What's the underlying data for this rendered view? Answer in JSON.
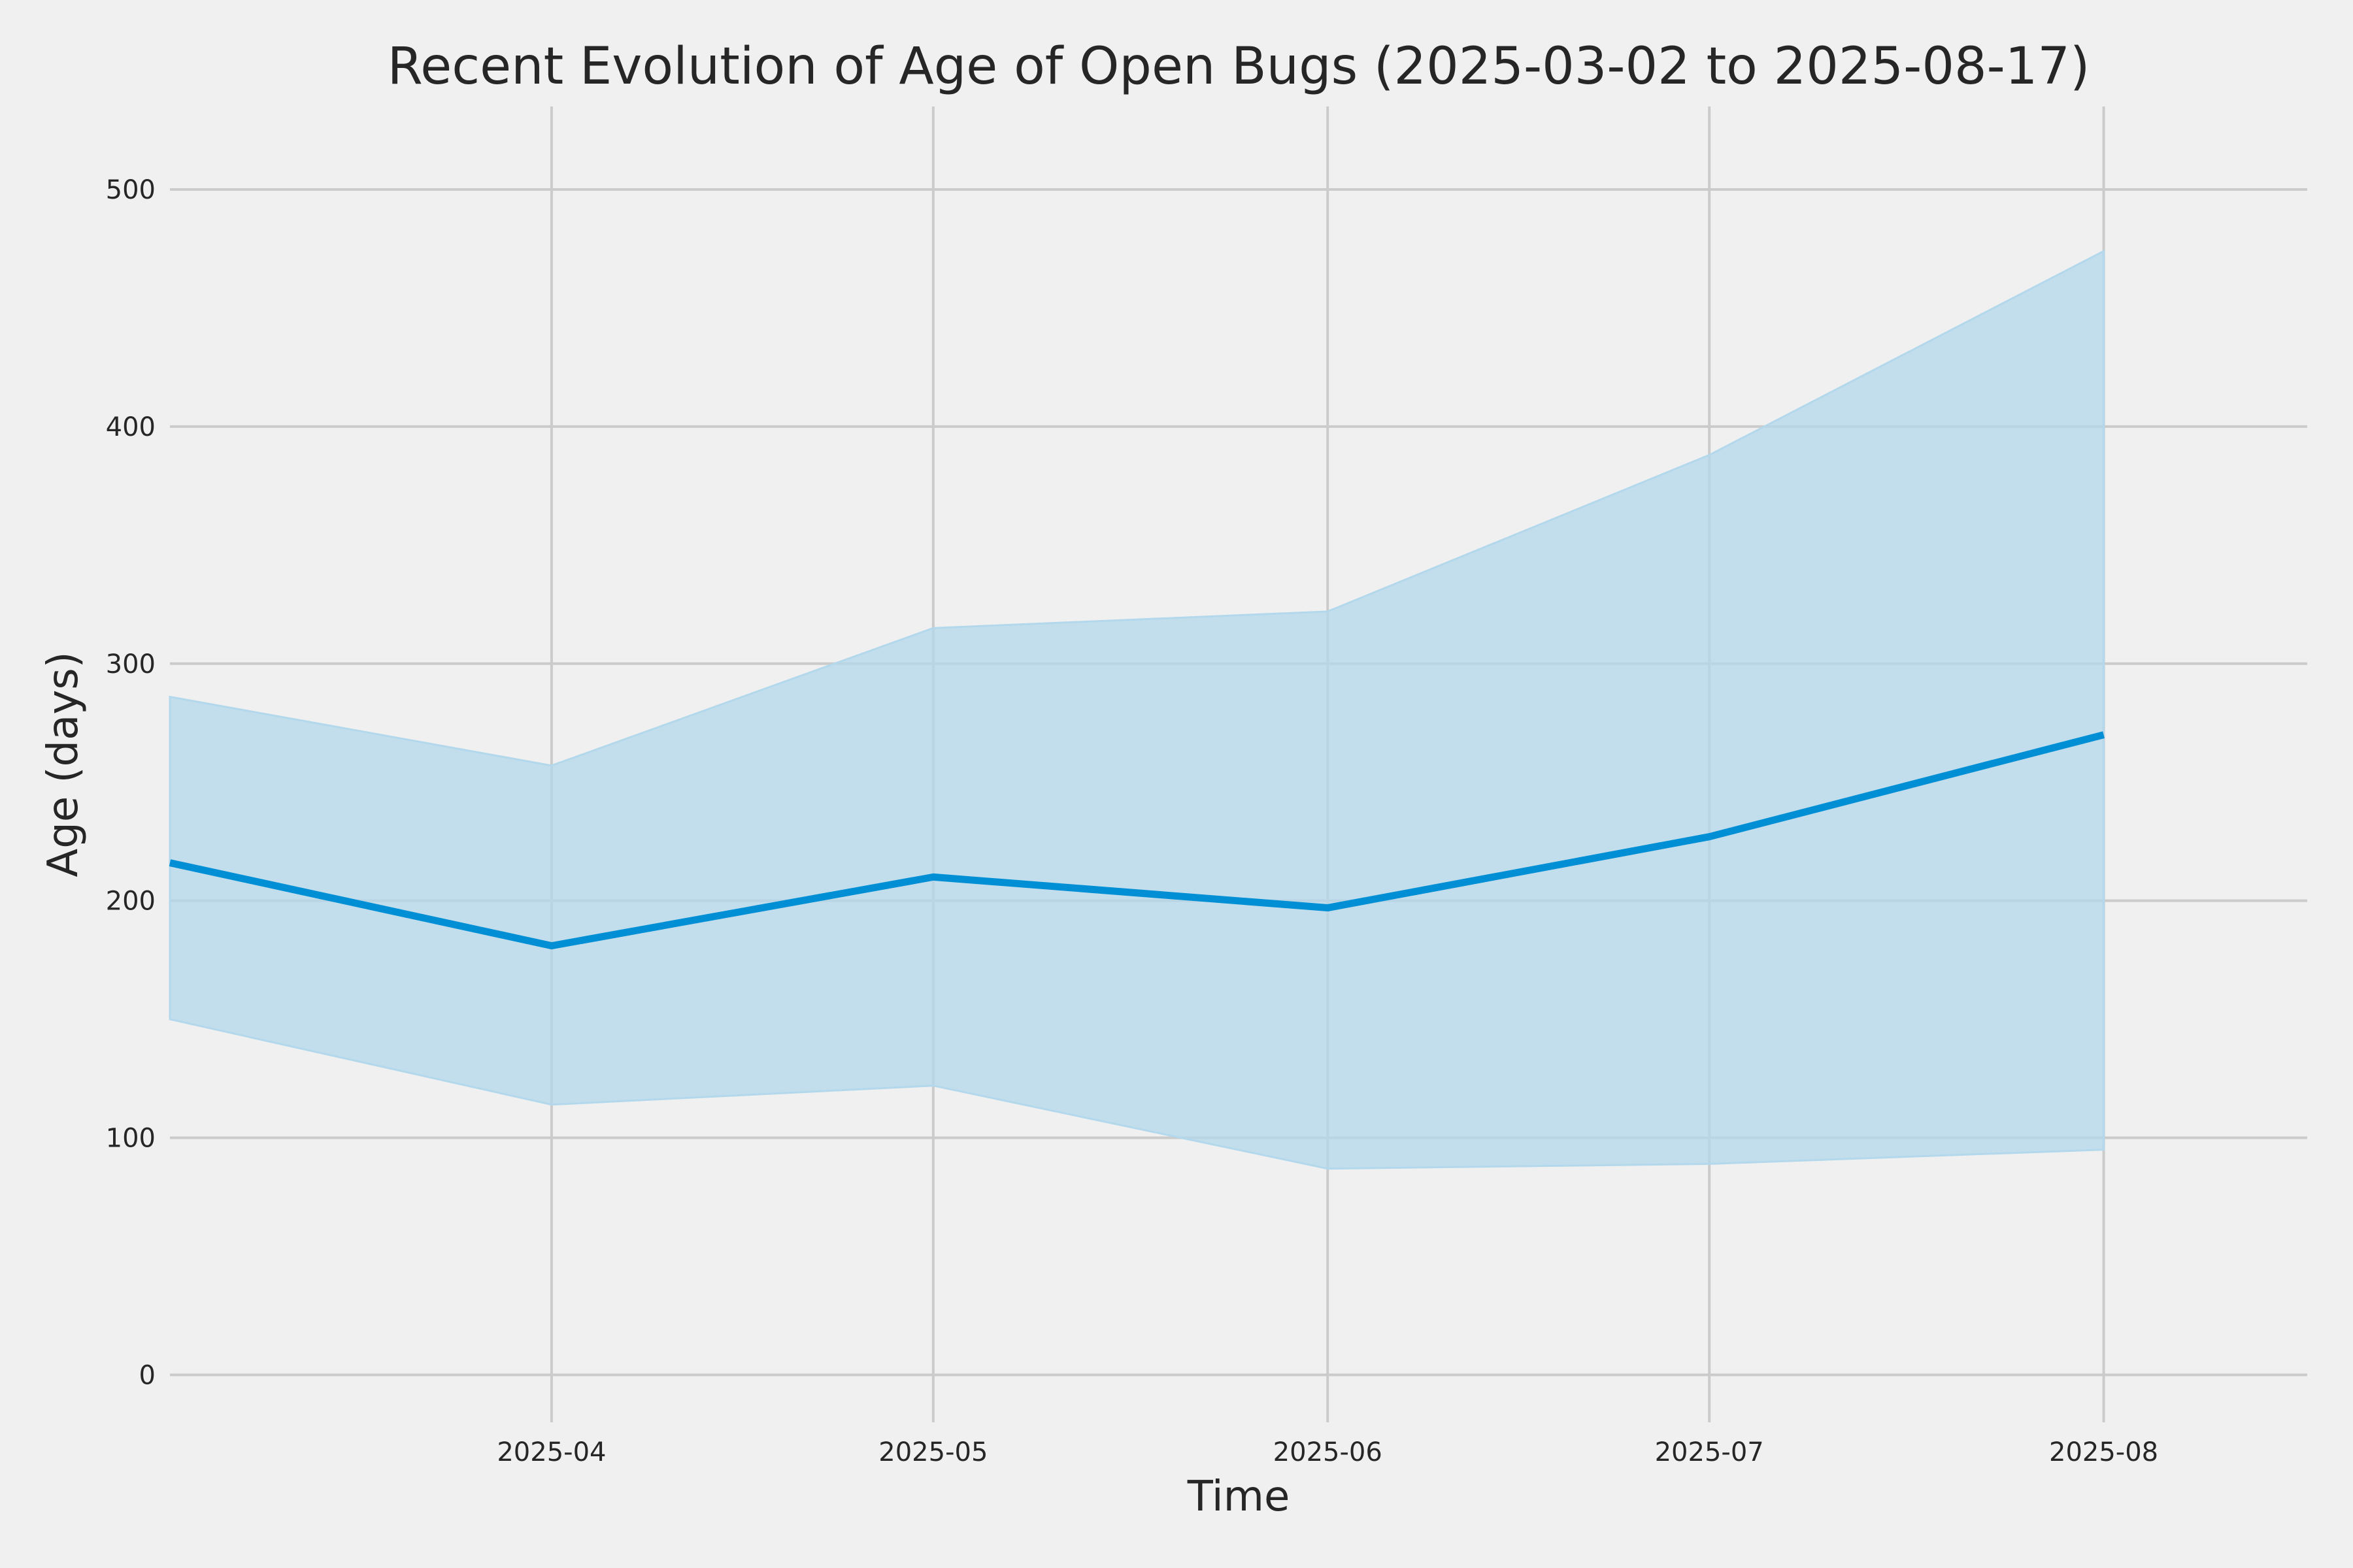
{
  "chart_data": {
    "type": "line",
    "title": "Recent Evolution of Age of Open Bugs (2025-03-02 to 2025-08-17)",
    "xlabel": "Time",
    "ylabel": "Age (days)",
    "x": [
      "2025-03-02",
      "2025-04-01",
      "2025-05-01",
      "2025-06-01",
      "2025-07-01",
      "2025-08-01"
    ],
    "x_ticks": [
      "2025-04",
      "2025-05",
      "2025-06",
      "2025-07",
      "2025-08"
    ],
    "xlim": [
      "2025-03-02",
      "2025-08-17"
    ],
    "ylim": [
      -20,
      535
    ],
    "y_ticks": [
      0,
      100,
      200,
      300,
      400,
      500
    ],
    "grid": true,
    "series": [
      {
        "values": [
          216,
          181,
          210,
          197,
          227,
          270
        ],
        "band_upper": [
          286,
          257,
          315,
          322,
          388,
          474
        ],
        "band_lower": [
          150,
          114,
          122,
          87,
          89,
          95
        ]
      }
    ],
    "colors": {
      "line": "#008fd5",
      "band": "#b3d8ec",
      "background": "#f0f0f0",
      "grid": "#cbcbcb"
    }
  }
}
